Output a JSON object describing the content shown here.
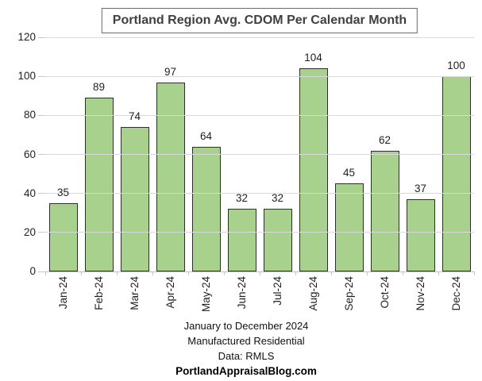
{
  "title": "Portland Region Avg. CDOM Per Calendar Month",
  "chart_data": {
    "type": "bar",
    "categories": [
      "Jan-24",
      "Feb-24",
      "Mar-24",
      "Apr-24",
      "May-24",
      "Jun-24",
      "Jul-24",
      "Aug-24",
      "Sep-24",
      "Oct-24",
      "Nov-24",
      "Dec-24"
    ],
    "values": [
      35,
      89,
      74,
      97,
      64,
      32,
      32,
      104,
      45,
      62,
      37,
      100
    ],
    "title": "Portland Region Avg. CDOM Per Calendar Month",
    "xlabel": "",
    "ylabel": "",
    "ylim": [
      0,
      120
    ],
    "yticks": [
      0,
      20,
      40,
      60,
      80,
      100,
      120
    ],
    "grid": true,
    "legend": false,
    "data_labels": true,
    "x_label_rotation": 90
  },
  "colors": {
    "bar_fill": "#a9d18e",
    "bar_border": "#2e2e2e",
    "gridline": "#d9d9d9",
    "axis_line": "#bfbfbf",
    "title_text": "#404040",
    "label_text": "#1f1f1f"
  },
  "footer": [
    "January to December 2024",
    "Manufactured Residential",
    "Data: RMLS",
    "PortlandAppraisalBlog.com"
  ]
}
